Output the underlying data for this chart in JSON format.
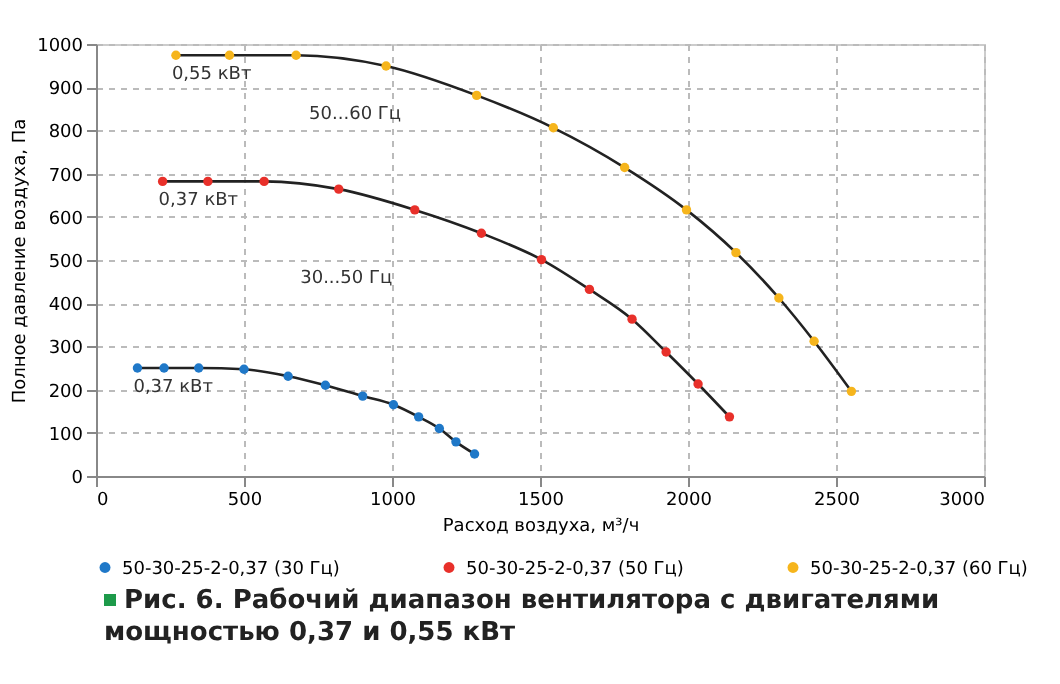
{
  "chart_data": {
    "type": "line",
    "xlabel": "Расход воздуха, м³/ч",
    "ylabel": "Полное давление воздуха, Па",
    "xlim": [
      0,
      3000
    ],
    "xticks": [
      0,
      500,
      1000,
      1500,
      2000,
      2500,
      3000
    ],
    "ylim": [
      0,
      1000
    ],
    "yticks": [
      0,
      100,
      200,
      300,
      400,
      500,
      600,
      700,
      800,
      900,
      1000
    ],
    "grid": true,
    "legend": "bottom",
    "marker": "circle",
    "series": [
      {
        "name": "50-30-25-2-0,37 (30 Гц)",
        "color": "#1f78c8",
        "x": [
          140,
          230,
          347,
          500,
          649,
          775,
          901,
          1005,
          1090,
          1160,
          1216,
          1279
        ],
        "values": [
          250,
          250,
          250,
          247,
          231,
          210,
          185,
          165,
          137,
          110,
          79,
          51
        ]
      },
      {
        "name": "50-30-25-2-0,37 (50 Гц)",
        "color": "#e8302a",
        "x": [
          225,
          378,
          568,
          820,
          1077,
          1302,
          1505,
          1667,
          1811,
          1926,
          2034,
          2140
        ],
        "values": [
          682,
          682,
          682,
          664,
          616,
          562,
          501,
          432,
          363,
          287,
          213,
          137
        ]
      },
      {
        "name": "50-30-25-2-0,37 (60 Гц)",
        "color": "#f6b51c",
        "x": [
          270,
          451,
          676,
          980,
          1286,
          1545,
          1786,
          1995,
          2162,
          2307,
          2426,
          2552
        ],
        "values": [
          974,
          974,
          974,
          949,
          881,
          806,
          714,
          616,
          517,
          412,
          312,
          196
        ]
      }
    ],
    "annotations": [
      {
        "text": "0,55 кВт",
        "x": 270,
        "y": 974
      },
      {
        "text": "0,37 кВт",
        "x": 225,
        "y": 682
      },
      {
        "text": "0,37 кВт",
        "x": 140,
        "y": 250
      },
      "50...60 Гц",
      "30...50 Гц",
      "Рис. 6. Рабочий диапазон вентилятора с двигателями мощностью 0,37 и 0,55 кВт"
    ]
  }
}
